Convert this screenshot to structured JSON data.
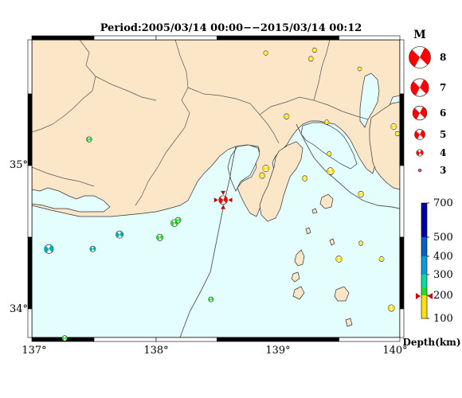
{
  "title": "Period:2005/03/14 00:00−−2015/03/14 00:12",
  "map": {
    "lon_labels": [
      "137°",
      "138°",
      "139°",
      "140°"
    ],
    "lat_labels": [
      "35°",
      "34°"
    ],
    "colors": {
      "sea": "#e4fdfd",
      "land": "#fbe6c8",
      "coast": "#333333",
      "border": "#000000"
    }
  },
  "legend": {
    "magnitude_title": "M",
    "magnitudes": [
      "8",
      "7",
      "6",
      "5",
      "4",
      "3"
    ],
    "depth_title": "Depth(km)",
    "depth_ticks": [
      "700",
      "500",
      "400",
      "300",
      "200",
      "100"
    ],
    "depth_colors": [
      "#0000b0",
      "#0060d0",
      "#00a0e0",
      "#00e0a0",
      "#20e020",
      "#ffe000"
    ],
    "pointer_color": "#cc0000"
  },
  "events": [
    {
      "lon": 138.55,
      "lat": 34.75,
      "mag": 4.3,
      "depth_color": "#ff0000"
    },
    {
      "lon": 137.45,
      "lat": 35.17,
      "mag": 3.5,
      "depth_color": "#20e020"
    },
    {
      "lon": 137.12,
      "lat": 34.41,
      "mag": 4.4,
      "depth_color": "#00b0b0"
    },
    {
      "lon": 137.48,
      "lat": 34.41,
      "mag": 3.6,
      "depth_color": "#00b0b0"
    },
    {
      "lon": 137.7,
      "lat": 34.51,
      "mag": 4.0,
      "depth_color": "#00b0b0"
    },
    {
      "lon": 138.03,
      "lat": 34.49,
      "mag": 3.8,
      "depth_color": "#20e020"
    },
    {
      "lon": 138.15,
      "lat": 34.59,
      "mag": 3.9,
      "depth_color": "#20e020"
    },
    {
      "lon": 138.18,
      "lat": 34.61,
      "mag": 3.6,
      "depth_color": "#20e020"
    },
    {
      "lon": 138.45,
      "lat": 34.06,
      "mag": 3.4,
      "depth_color": "#20e020"
    },
    {
      "lon": 137.25,
      "lat": 33.79,
      "mag": 3.5,
      "depth_color": "#20e020"
    },
    {
      "lon": 138.9,
      "lat": 35.77,
      "mag": 3.3,
      "depth_color": "#ffe000"
    },
    {
      "lon": 139.27,
      "lat": 35.73,
      "mag": 3.4,
      "depth_color": "#ffe000"
    },
    {
      "lon": 139.3,
      "lat": 35.79,
      "mag": 3.3,
      "depth_color": "#ffe000"
    },
    {
      "lon": 139.67,
      "lat": 35.66,
      "mag": 3.2,
      "depth_color": "#ffe000"
    },
    {
      "lon": 139.07,
      "lat": 35.33,
      "mag": 3.5,
      "depth_color": "#ffe000"
    },
    {
      "lon": 139.4,
      "lat": 35.29,
      "mag": 3.3,
      "depth_color": "#ffe000"
    },
    {
      "lon": 139.95,
      "lat": 35.26,
      "mag": 3.6,
      "depth_color": "#ffe000"
    },
    {
      "lon": 139.98,
      "lat": 35.21,
      "mag": 3.3,
      "depth_color": "#ffe000"
    },
    {
      "lon": 139.42,
      "lat": 35.07,
      "mag": 3.3,
      "depth_color": "#ffe000"
    },
    {
      "lon": 138.9,
      "lat": 34.97,
      "mag": 3.8,
      "depth_color": "#ffe000"
    },
    {
      "lon": 138.87,
      "lat": 34.92,
      "mag": 3.6,
      "depth_color": "#ffe000"
    },
    {
      "lon": 139.22,
      "lat": 34.9,
      "mag": 3.5,
      "depth_color": "#ffe000"
    },
    {
      "lon": 139.43,
      "lat": 34.95,
      "mag": 3.9,
      "depth_color": "#ffe000"
    },
    {
      "lon": 139.68,
      "lat": 34.79,
      "mag": 3.6,
      "depth_color": "#ffe000"
    },
    {
      "lon": 139.68,
      "lat": 34.45,
      "mag": 3.3,
      "depth_color": "#ffe000"
    },
    {
      "lon": 139.5,
      "lat": 34.34,
      "mag": 3.7,
      "depth_color": "#ffe000"
    },
    {
      "lon": 139.85,
      "lat": 34.34,
      "mag": 3.4,
      "depth_color": "#ffe000"
    },
    {
      "lon": 139.93,
      "lat": 34.0,
      "mag": 3.8,
      "depth_color": "#ffe000"
    }
  ]
}
